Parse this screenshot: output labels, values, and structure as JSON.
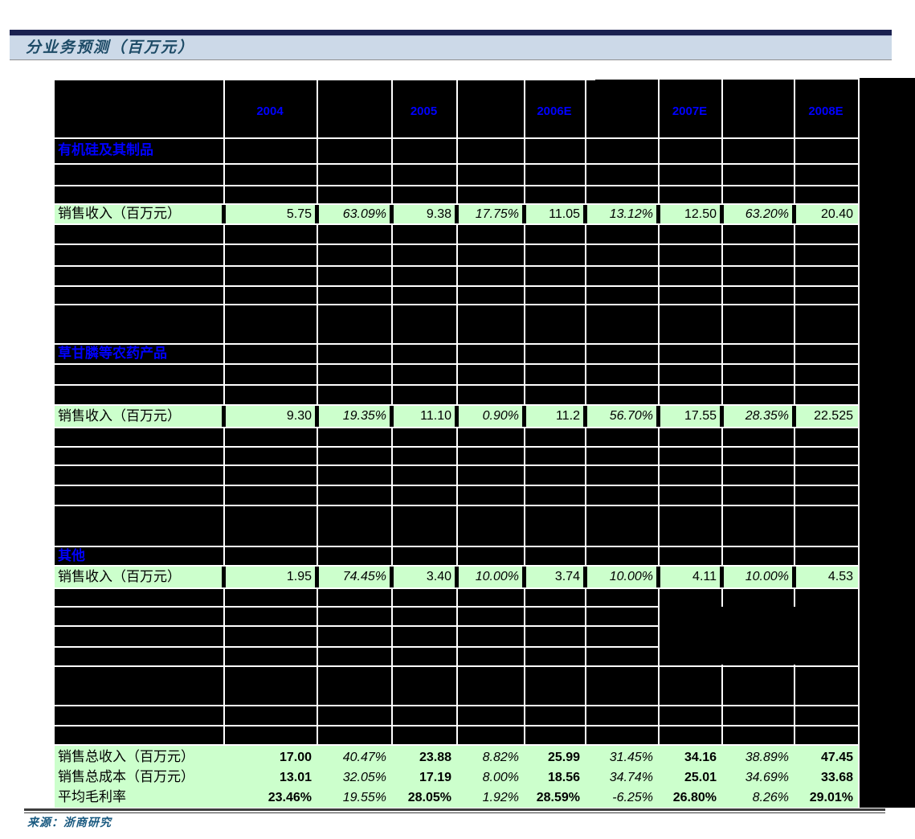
{
  "title": "分业务预测（百万元）",
  "source": "来源：浙商研究",
  "table": {
    "year_columns": [
      "2004",
      "2005",
      "2006E",
      "2007E",
      "2008E"
    ],
    "sections": [
      {
        "name": "有机硅及其制品",
        "row_label": "销售收入（百万元）",
        "values": [
          "5.75",
          "63.09%",
          "9.38",
          "17.75%",
          "11.05",
          "13.12%",
          "12.50",
          "63.20%",
          "20.40"
        ]
      },
      {
        "name": "草甘膦等农药产品",
        "row_label": "销售收入（百万元）",
        "values": [
          "9.30",
          "19.35%",
          "11.10",
          "0.90%",
          "11.2",
          "56.70%",
          "17.55",
          "28.35%",
          "22.525"
        ]
      },
      {
        "name": "其他",
        "row_label": "销售收入（百万元）",
        "values": [
          "1.95",
          "74.45%",
          "3.40",
          "10.00%",
          "3.74",
          "10.00%",
          "4.11",
          "10.00%",
          "4.53"
        ]
      }
    ],
    "totals": [
      {
        "label": "销售总收入（百万元）",
        "values": [
          "17.00",
          "40.47%",
          "23.88",
          "8.82%",
          "25.99",
          "31.45%",
          "34.16",
          "38.89%",
          "47.45"
        ]
      },
      {
        "label": "销售总成本（百万元）",
        "values": [
          "13.01",
          "32.05%",
          "17.19",
          "8.00%",
          "18.56",
          "34.74%",
          "25.01",
          "34.69%",
          "33.68"
        ]
      },
      {
        "label": "平均毛利率",
        "values": [
          "23.46%",
          "19.55%",
          "28.05%",
          "1.92%",
          "28.59%",
          "-6.25%",
          "26.80%",
          "8.26%",
          "29.01%"
        ]
      }
    ]
  },
  "colors": {
    "highlight_row_green": "#ccffcc",
    "header_text_blue": "#0000ff",
    "title_bar_navy": "#1a2150",
    "title_band_blue": "#ccd9e8",
    "title_text": "#1c4a66",
    "table_cell_black": "#000000",
    "gridline_white": "#ffffff"
  }
}
